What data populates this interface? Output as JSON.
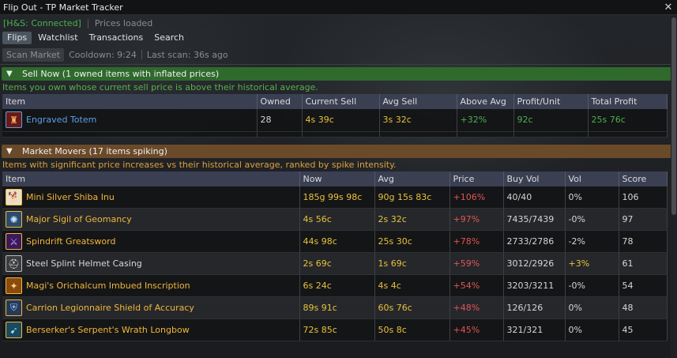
{
  "window": {
    "title": "Flip Out - TP Market Tracker"
  },
  "status": {
    "connection": "[H&S: Connected]",
    "prices": "Prices loaded"
  },
  "tabs": [
    "Flips",
    "Watchlist",
    "Transactions",
    "Search"
  ],
  "scan": {
    "button": "Scan Market",
    "cooldown": "Cooldown: 9:24",
    "last_scan": "Last scan: 36s ago"
  },
  "sell_now": {
    "header": "Sell Now (1 owned items with inflated prices)",
    "description": "Items you own whose current sell price is above their historical average.",
    "columns": [
      "Item",
      "Owned",
      "Current Sell",
      "Avg Sell",
      "Above Avg",
      "Profit/Unit",
      "Total Profit"
    ],
    "rows": [
      {
        "name": "Engraved Totem",
        "owned": "28",
        "current": "4s 39c",
        "avg": "3s 32c",
        "above": "+32%",
        "profit": "92c",
        "total": "25s 76c",
        "icon": "totem-icon"
      }
    ]
  },
  "movers": {
    "header": "Market Movers (17 items spiking)",
    "description": "Items with significant price increases vs their historical average, ranked by spike intensity.",
    "columns": [
      "Item",
      "Now",
      "Avg",
      "Price",
      "Buy Vol",
      "Vol",
      "Score"
    ],
    "rows": [
      {
        "name": "Mini Silver Shiba Inu",
        "now": "185g 99s 98c",
        "avg": "90g 15s 83c",
        "price": "+106%",
        "buyvol": "40/40",
        "vol": "0%",
        "score": "106",
        "color": "gold",
        "icon": "shiba-icon"
      },
      {
        "name": "Major Sigil of Geomancy",
        "now": "4s 56c",
        "avg": "2s 32c",
        "price": "+97%",
        "buyvol": "7435/7439",
        "vol": "-0%",
        "score": "97",
        "color": "gold",
        "icon": "sigil-icon"
      },
      {
        "name": "Spindrift Greatsword",
        "now": "44s 98c",
        "avg": "25s 30c",
        "price": "+78%",
        "buyvol": "2733/2786",
        "vol": "-2%",
        "score": "78",
        "color": "gold",
        "icon": "greatsword-icon"
      },
      {
        "name": "Steel Splint Helmet Casing",
        "now": "2s 69c",
        "avg": "1s 69c",
        "price": "+59%",
        "buyvol": "3012/2926",
        "vol": "+3%",
        "score": "61",
        "color": "white",
        "icon": "helmet-icon"
      },
      {
        "name": "Magi's Orichalcum Imbued Inscription",
        "now": "6s 24c",
        "avg": "4s 4c",
        "price": "+54%",
        "buyvol": "3203/3211",
        "vol": "-0%",
        "score": "54",
        "color": "gold",
        "icon": "inscription-icon"
      },
      {
        "name": "Carrion Legionnaire Shield of Accuracy",
        "now": "89s 91c",
        "avg": "60s 76c",
        "price": "+48%",
        "buyvol": "126/126",
        "vol": "0%",
        "score": "48",
        "color": "gold",
        "icon": "shield-icon"
      },
      {
        "name": "Berserker's Serpent's Wrath Longbow",
        "now": "72s 85c",
        "avg": "50s 8c",
        "price": "+45%",
        "buyvol": "321/321",
        "vol": "0%",
        "score": "45",
        "color": "gold",
        "icon": "longbow-icon"
      }
    ]
  },
  "colors": {
    "connected": "#4caf50",
    "sell_header": "#2f6a2c",
    "movers_header": "#6b4a2a",
    "table_header": "#3a3f52",
    "gold_text": "#e8c23a",
    "price_red": "#e05555"
  }
}
